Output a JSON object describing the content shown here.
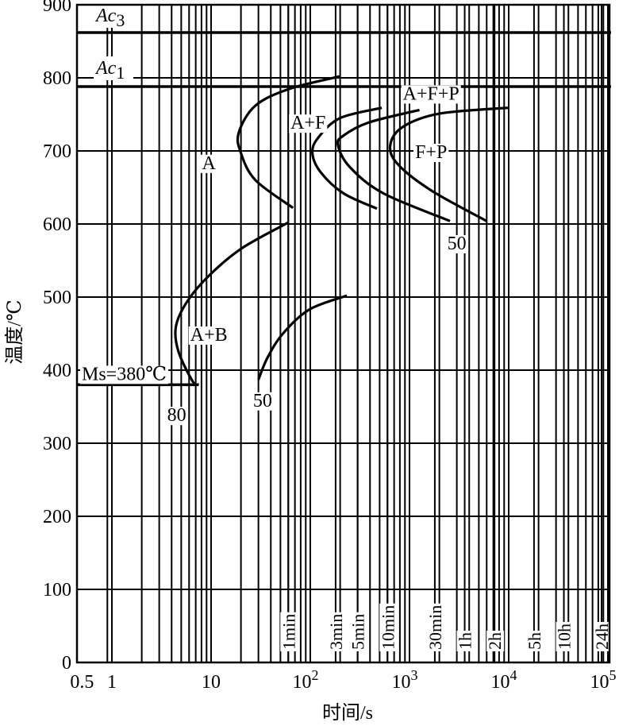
{
  "chart_data": {
    "type": "line",
    "title": "",
    "xlabel": "时间/s",
    "ylabel": "温度/℃",
    "xscale": "log",
    "xlim": [
      0.45,
      100000
    ],
    "ylim": [
      0,
      900
    ],
    "grid": true,
    "x_ticks": [
      {
        "value": 0.5,
        "label": "0.5",
        "sup": ""
      },
      {
        "value": 1,
        "label": "1",
        "sup": ""
      },
      {
        "value": 10,
        "label": "10",
        "sup": ""
      },
      {
        "value": 100,
        "label": "10",
        "sup": "2"
      },
      {
        "value": 1000,
        "label": "10",
        "sup": "3"
      },
      {
        "value": 10000,
        "label": "10",
        "sup": "4"
      },
      {
        "value": 100000,
        "label": "10",
        "sup": "5"
      }
    ],
    "y_ticks": [
      0,
      100,
      200,
      300,
      400,
      500,
      600,
      700,
      800,
      900
    ],
    "time_markers": [
      {
        "value": 60,
        "label": "1min"
      },
      {
        "value": 180,
        "label": "3min"
      },
      {
        "value": 300,
        "label": "5min"
      },
      {
        "value": 600,
        "label": "10min"
      },
      {
        "value": 1800,
        "label": "30min"
      },
      {
        "value": 3600,
        "label": "1h"
      },
      {
        "value": 7200,
        "label": "2h"
      },
      {
        "value": 18000,
        "label": "5h"
      },
      {
        "value": 36000,
        "label": "10h"
      },
      {
        "value": 86400,
        "label": "24h"
      }
    ],
    "reference_lines": [
      {
        "name": "Ac3",
        "label_main": "Ac",
        "label_sub": "3",
        "temperature": 862
      },
      {
        "name": "Ac1",
        "label_main": "Ac",
        "label_sub": "1",
        "temperature": 788
      },
      {
        "name": "Ms",
        "label": "Ms=380℃",
        "temperature": 380,
        "x_end": 7.5
      }
    ],
    "curves": [
      {
        "id": "ferrite-start",
        "points": [
          [
            198,
            802
          ],
          [
            62,
            785
          ],
          [
            28,
            762
          ],
          [
            19,
            725
          ],
          [
            20,
            697
          ],
          [
            28,
            660
          ],
          [
            67,
            622
          ]
        ]
      },
      {
        "id": "ferrite-end",
        "points": [
          [
            525,
            759
          ],
          [
            200,
            745
          ],
          [
            120,
            718
          ],
          [
            105,
            697
          ],
          [
            127,
            671
          ],
          [
            216,
            642
          ],
          [
            470,
            621
          ]
        ]
      },
      {
        "id": "pearlite-start",
        "points": [
          [
            1260,
            756
          ],
          [
            390,
            739
          ],
          [
            216,
            721
          ],
          [
            190,
            708
          ],
          [
            250,
            678
          ],
          [
            545,
            642
          ],
          [
            2560,
            604
          ]
        ]
      },
      {
        "id": "pearlite-end",
        "points": [
          [
            9800,
            759
          ],
          [
            2000,
            751
          ],
          [
            860,
            733
          ],
          [
            640,
            708
          ],
          [
            760,
            682
          ],
          [
            1650,
            646
          ],
          [
            6000,
            604
          ]
        ]
      },
      {
        "id": "bainite-start",
        "points": [
          [
            60,
            602
          ],
          [
            20,
            566
          ],
          [
            9,
            526
          ],
          [
            5.5,
            490
          ],
          [
            4.4,
            458
          ],
          [
            4.7,
            425
          ],
          [
            6.5,
            385
          ],
          [
            7.5,
            380
          ]
        ]
      },
      {
        "id": "bainite-end",
        "points": [
          [
            234,
            502
          ],
          [
            98,
            483
          ],
          [
            53,
            450
          ],
          [
            37,
            417
          ],
          [
            30,
            387
          ]
        ]
      }
    ],
    "region_labels": [
      {
        "text": "A",
        "t": 9.5,
        "T": 685
      },
      {
        "text": "A+F",
        "t": 95,
        "T": 740
      },
      {
        "text": "A+F+P",
        "t": 1650,
        "T": 780
      },
      {
        "text": "F+P",
        "t": 1650,
        "T": 700
      },
      {
        "text": "A+B",
        "t": 9.5,
        "T": 450
      },
      {
        "text": "50",
        "t": 3000,
        "T": 575
      },
      {
        "text": "80",
        "t": 4.5,
        "T": 340
      },
      {
        "text": "50",
        "t": 33,
        "T": 360
      }
    ]
  }
}
